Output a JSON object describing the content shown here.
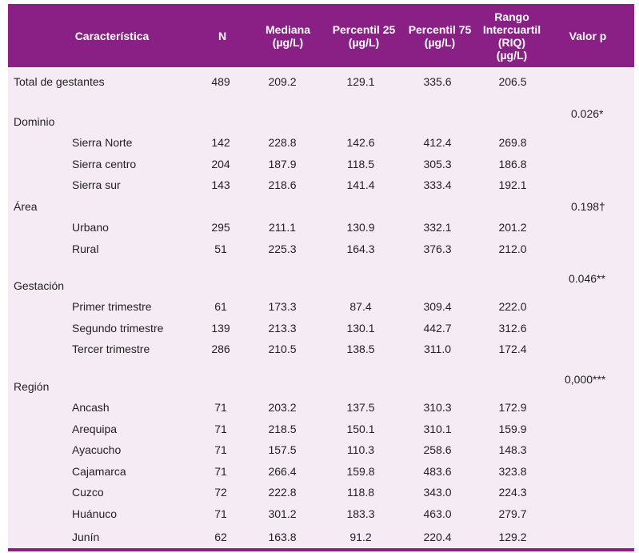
{
  "header": {
    "caracteristica": "Característica",
    "n": "N",
    "mediana": [
      "Mediana",
      "(µg/L)"
    ],
    "p25": [
      "Percentil 25",
      "(µg/L)"
    ],
    "p75": [
      "Percentil 75",
      "(µg/L)"
    ],
    "riq": [
      "Rango",
      "Intercuartil",
      "(RIQ)",
      "(µg/L)"
    ],
    "valor_p": "Valor p"
  },
  "rows": [
    {
      "label": "Total de gestantes",
      "n": "489",
      "mediana": "209.2",
      "p25": "129.1",
      "p75": "335.6",
      "riq": "206.5"
    },
    {
      "label": "Dominio"
    },
    {
      "label": "Sierra Norte",
      "n": "142",
      "mediana": "228.8",
      "p25": "142.6",
      "p75": "412.4",
      "riq": "269.8"
    },
    {
      "label": "Sierra centro",
      "n": "204",
      "mediana": "187.9",
      "p25": "118.5",
      "p75": "305.3",
      "riq": "186.8"
    },
    {
      "label": "Sierra sur",
      "n": "143",
      "mediana": "218.6",
      "p25": "141.4",
      "p75": "333.4",
      "riq": "192.1"
    },
    {
      "label": "Área"
    },
    {
      "label": "Urbano",
      "n": "295",
      "mediana": "211.1",
      "p25": "130.9",
      "p75": "332.1",
      "riq": "201.2"
    },
    {
      "label": "Rural",
      "n": "51",
      "mediana": "225.3",
      "p25": "164.3",
      "p75": "376.3",
      "riq": "212.0"
    },
    {
      "label": "Gestación"
    },
    {
      "label": "Primer trimestre",
      "n": "61",
      "mediana": "173.3",
      "p25": "87.4",
      "p75": "309.4",
      "riq": "222.0"
    },
    {
      "label": "Segundo trimestre",
      "n": "139",
      "mediana": "213.3",
      "p25": "130.1",
      "p75": "442.7",
      "riq": "312.6"
    },
    {
      "label": "Tercer trimestre",
      "n": "286",
      "mediana": "210.5",
      "p25": "138.5",
      "p75": "311.0",
      "riq": "172.4"
    },
    {
      "label": "Región"
    },
    {
      "label": "Ancash",
      "n": "71",
      "mediana": "203.2",
      "p25": "137.5",
      "p75": "310.3",
      "riq": "172.9"
    },
    {
      "label": "Arequipa",
      "n": "71",
      "mediana": "218.5",
      "p25": "150.1",
      "p75": "310.1",
      "riq": "159.9"
    },
    {
      "label": "Ayacucho",
      "n": "71",
      "mediana": "157.5",
      "p25": "110.3",
      "p75": "258.6",
      "riq": "148.3"
    },
    {
      "label": "Cajamarca",
      "n": "71",
      "mediana": "266.4",
      "p25": "159.8",
      "p75": "483.6",
      "riq": "323.8"
    },
    {
      "label": "Cuzco",
      "n": "72",
      "mediana": "222.8",
      "p25": "118.8",
      "p75": "343.0",
      "riq": "224.3"
    },
    {
      "label": "Huánuco",
      "n": "71",
      "mediana": "301.2",
      "p25": "183.3",
      "p75": "463.0",
      "riq": "279.7"
    },
    {
      "label": "Junín",
      "n": "62",
      "mediana": "163.8",
      "p25": "91.2",
      "p75": "220.4",
      "riq": "129.2"
    }
  ],
  "p_values": [
    "0.026*",
    "0.198†",
    "0.046**",
    "0,000***"
  ],
  "colors": {
    "header_bg": "#8a1f86",
    "body_bg": "#f4ebf4",
    "text": "#231f20"
  }
}
